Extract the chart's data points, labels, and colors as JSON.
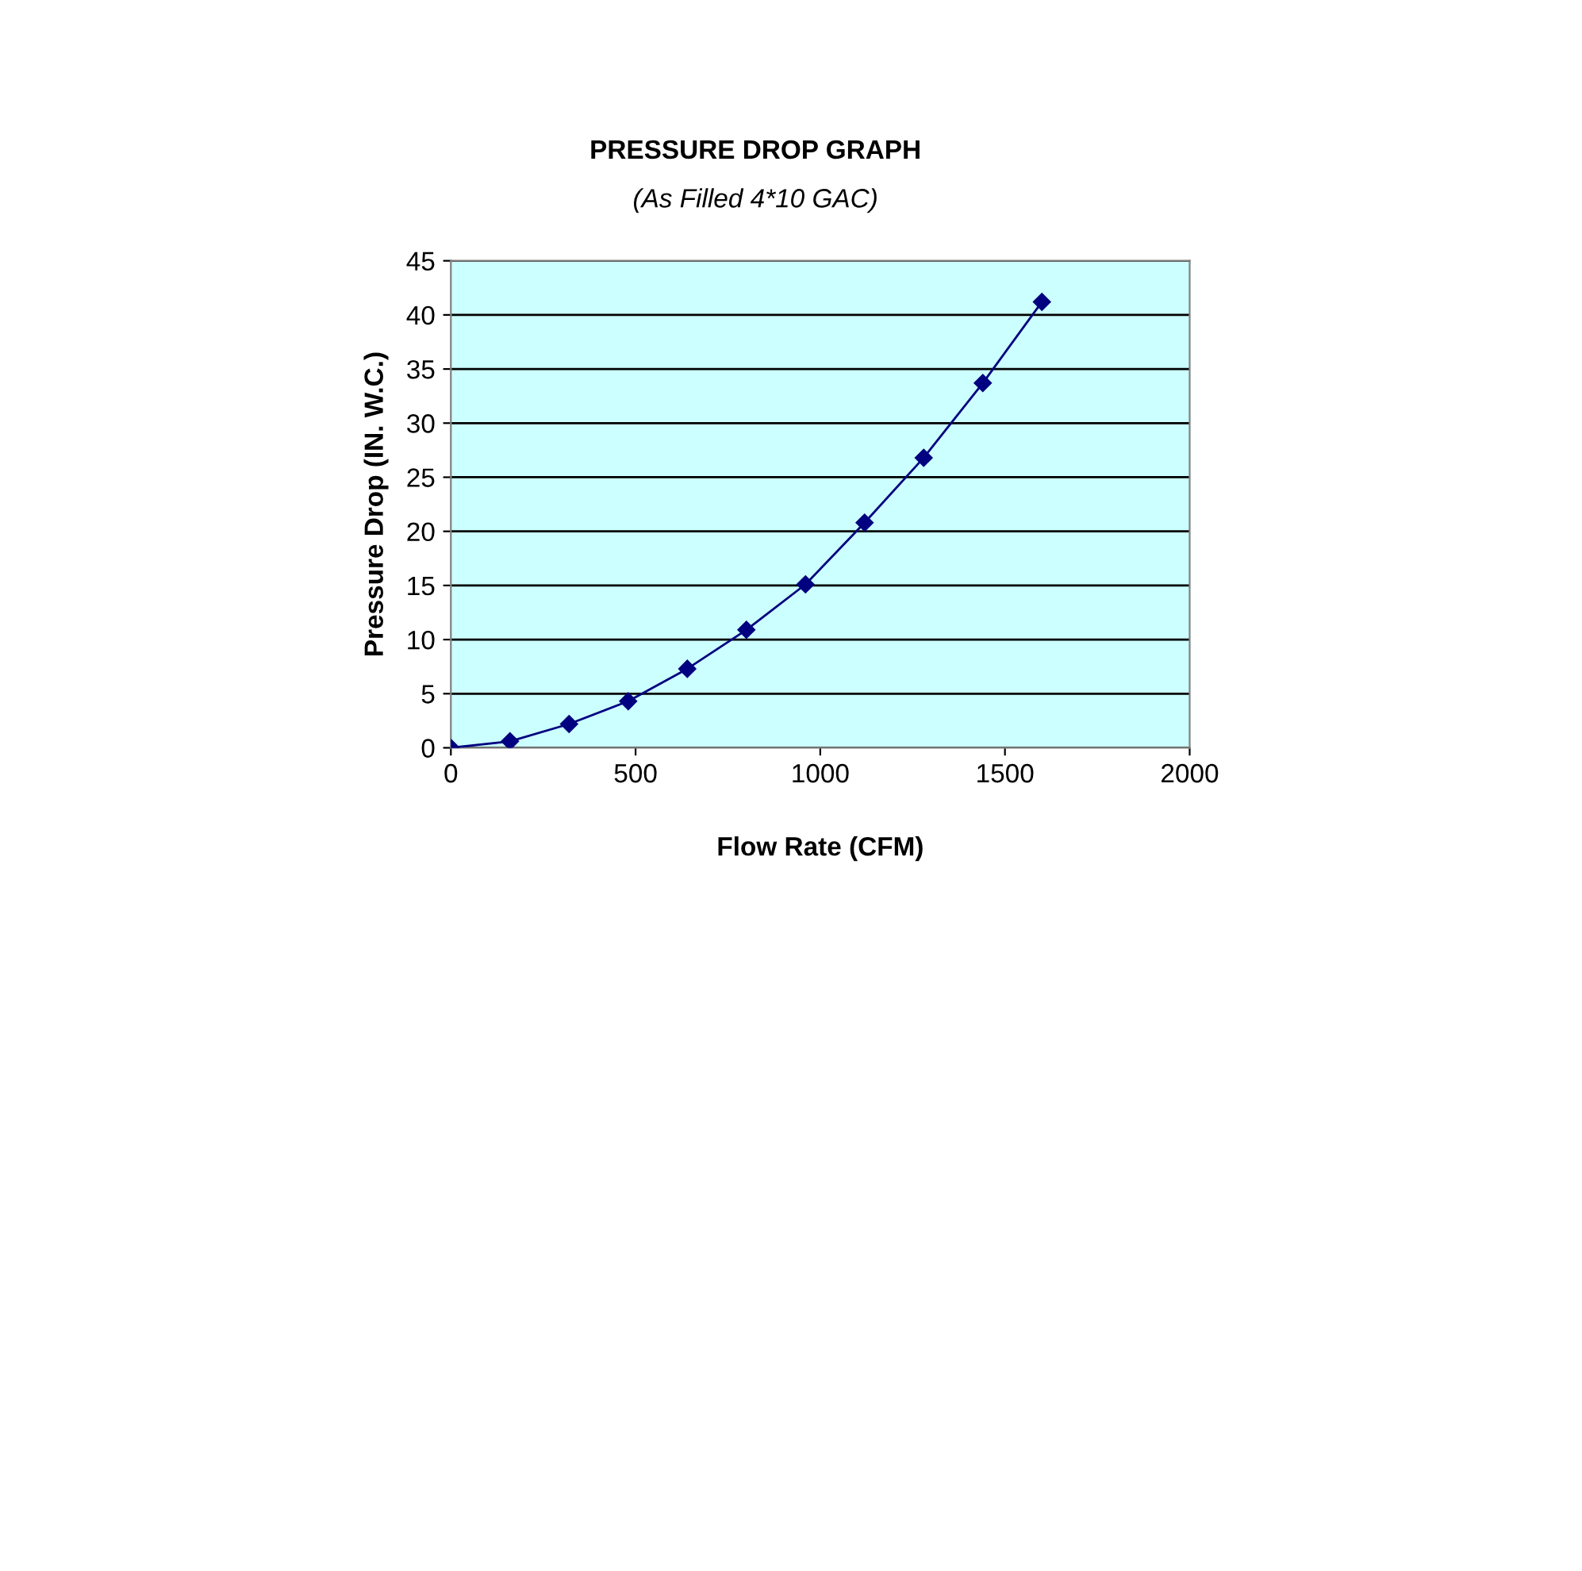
{
  "chart_data": {
    "type": "line",
    "title": "PRESSURE DROP GRAPH",
    "subtitle": "(As Filled 4*10 GAC)",
    "xlabel": "Flow Rate (CFM)",
    "ylabel": "Pressure Drop (IN. W.C.)",
    "x": [
      0,
      160,
      320,
      480,
      640,
      800,
      960,
      1120,
      1280,
      1440,
      1600
    ],
    "series": [
      {
        "color": "#000080",
        "values": [
          0,
          0.6,
          2.2,
          4.3,
          7.3,
          10.9,
          15.1,
          20.8,
          26.8,
          33.7,
          41.2
        ]
      }
    ],
    "xlim": [
      0,
      2000
    ],
    "xticks": [
      0,
      500,
      1000,
      1500,
      2000
    ],
    "ylim": [
      0,
      45
    ],
    "yticks": [
      0,
      5,
      10,
      15,
      20,
      25,
      30,
      35,
      40,
      45
    ],
    "grid": "y",
    "marker": "diamond",
    "line_style": "solid",
    "legend": false
  }
}
